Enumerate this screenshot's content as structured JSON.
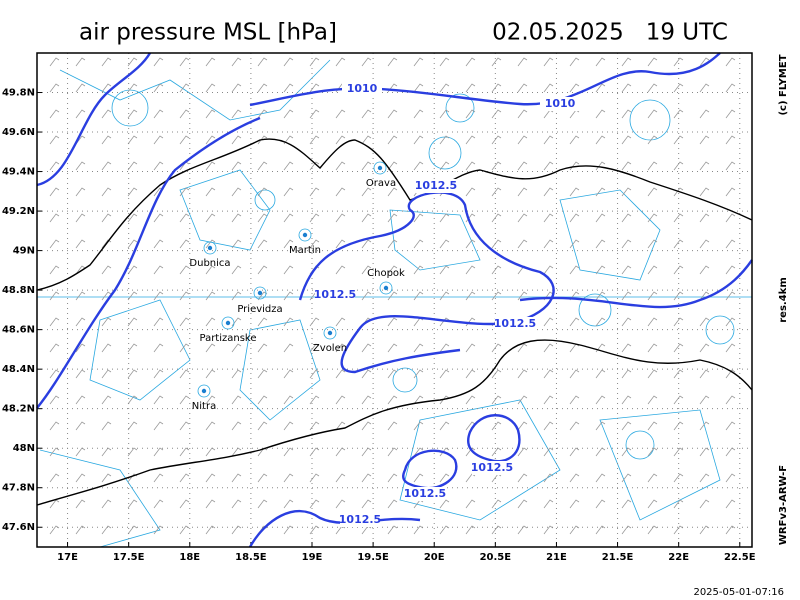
{
  "header": {
    "title": "air pressure MSL [hPa]",
    "valid_time": "02.05.2025   19 UTC"
  },
  "map": {
    "xlim": [
      16.75,
      22.6
    ],
    "ylim": [
      47.5,
      50.0
    ],
    "grid": true,
    "xticks": [
      {
        "value": 17,
        "label": "17E"
      },
      {
        "value": 17.5,
        "label": "17.5E"
      },
      {
        "value": 18,
        "label": "18E"
      },
      {
        "value": 18.5,
        "label": "18.5E"
      },
      {
        "value": 19,
        "label": "19E"
      },
      {
        "value": 19.5,
        "label": "19.5E"
      },
      {
        "value": 20,
        "label": "20E"
      },
      {
        "value": 20.5,
        "label": "20.5E"
      },
      {
        "value": 21,
        "label": "21E"
      },
      {
        "value": 21.5,
        "label": "21.5E"
      },
      {
        "value": 22,
        "label": "22E"
      },
      {
        "value": 22.5,
        "label": "22.5E"
      }
    ],
    "yticks": [
      {
        "value": 47.6,
        "label": "47.6N"
      },
      {
        "value": 47.8,
        "label": "47.8N"
      },
      {
        "value": 48,
        "label": "48N"
      },
      {
        "value": 48.2,
        "label": "48.2N"
      },
      {
        "value": 48.4,
        "label": "48.4N"
      },
      {
        "value": 48.6,
        "label": "48.6N"
      },
      {
        "value": 48.8,
        "label": "48.8N"
      },
      {
        "value": 49,
        "label": "49N"
      },
      {
        "value": 49.2,
        "label": "49.2N"
      },
      {
        "value": 49.4,
        "label": "49.4N"
      },
      {
        "value": 49.6,
        "label": "49.6N"
      },
      {
        "value": 49.8,
        "label": "49.8N"
      }
    ],
    "cities": [
      "Orava",
      "Martin",
      "Dubnica",
      "Chopok",
      "Prievidza",
      "Partizanske",
      "Zvolen",
      "Nitra"
    ],
    "contour_labels": [
      1010,
      1010,
      1012.5,
      1012.5,
      1012.5,
      1012.5,
      1012.5,
      1012.5
    ]
  },
  "side_labels": {
    "copyright": "(c) FLYMET",
    "resolution": "res.4km",
    "model": "WRFv3-ARW-F"
  },
  "footer": {
    "run_time": "2025-05-01-07:16"
  }
}
